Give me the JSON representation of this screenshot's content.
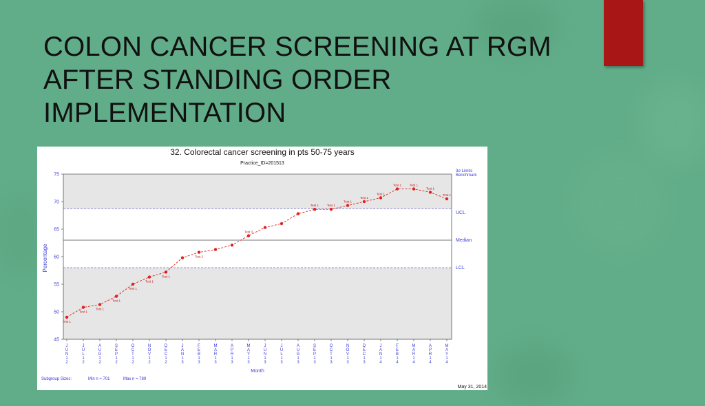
{
  "slide": {
    "title": "COLON CANCER SCREENING AT RGM AFTER STANDING ORDER IMPLEMENTATION"
  },
  "colors": {
    "background": "#62ad89",
    "accent_bar": "#a81616",
    "data_line": "#e0201b",
    "limit_line": "#6a6ad0",
    "center_line": "#777777",
    "zone_fill": "#e6e6e6",
    "axis_text": "#3a3ad8"
  },
  "chart_data": {
    "type": "line",
    "title": "32. Colorectal cancer screening in pts 50-75 years",
    "subtitle": "Practice_ID=201513",
    "xlabel": "Month",
    "ylabel": "Percentage",
    "ylim": [
      45,
      75
    ],
    "yticks": [
      45,
      50,
      55,
      60,
      65,
      70,
      75
    ],
    "categories": [
      "JUN12",
      "JUL12",
      "AUG12",
      "SEP12",
      "OCT12",
      "NOV12",
      "DEC12",
      "JAN13",
      "FEB13",
      "MAR13",
      "APR13",
      "MAY13",
      "JUN13",
      "JUL13",
      "AUG13",
      "SEP13",
      "OCT13",
      "NOV13",
      "DEC13",
      "JAN14",
      "FEB14",
      "MAR14",
      "APR14",
      "MAY14"
    ],
    "series": [
      {
        "values": [
          49.0,
          50.8,
          51.3,
          52.8,
          55.0,
          56.3,
          57.2,
          59.8,
          60.8,
          61.3,
          62.1,
          63.8,
          65.3,
          66.0,
          67.8,
          68.6,
          68.6,
          69.3,
          70.0,
          70.7,
          72.3,
          72.3,
          71.7,
          70.5
        ],
        "point_labels": [
          "Test 1",
          "Test 1",
          "Test 1",
          "Test 1",
          "Test 1",
          "Test 1",
          "Test 1",
          "",
          "Test 2",
          "",
          "",
          "Test 3",
          "",
          "",
          "",
          "Test 1",
          "Test 1",
          "Test 1",
          "Test 1",
          "Test 1",
          "Test 1",
          "Test 1",
          "Test 1",
          "Test 1"
        ]
      }
    ],
    "control_limits": {
      "ucl": 68.7,
      "center": 63.0,
      "lcl": 58.0,
      "ucl_label": "UCL",
      "center_label": "Median",
      "lcl_label": "LCL",
      "benchmark_label": "Benchmark",
      "sigma_label": "3σ Limits"
    },
    "grid": false,
    "subgroup_sizes": {
      "label": "Subgroup Sizes:",
      "min": "Min n = 701",
      "max": "Max n = 789"
    },
    "date": "May 31, 2014"
  }
}
